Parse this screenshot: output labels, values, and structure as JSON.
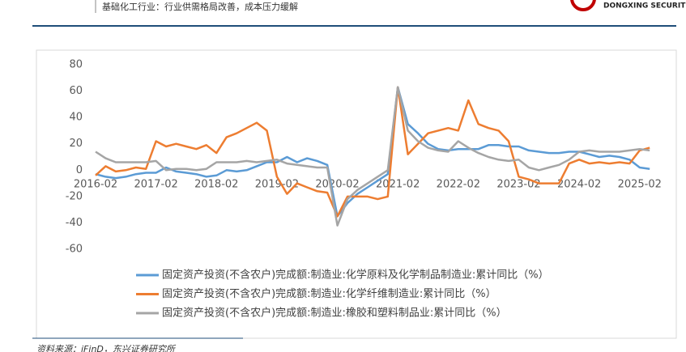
{
  "header": {
    "title": "基础化工行业：行业供需格局改善，成本压力缓解",
    "brand": "DONGXING SECURITIES"
  },
  "footer": {
    "source": "资料来源：iFinD，东兴证券研究所"
  },
  "chart_data": {
    "type": "line",
    "categories": [
      "2016-02",
      null,
      null,
      null,
      null,
      null,
      "2017-02",
      null,
      null,
      null,
      null,
      null,
      "2018-02",
      null,
      null,
      null,
      null,
      null,
      "2019-02",
      null,
      null,
      null,
      null,
      null,
      "2020-02",
      null,
      null,
      null,
      null,
      null,
      "2021-02",
      null,
      null,
      null,
      null,
      null,
      "2022-02",
      null,
      null,
      null,
      null,
      null,
      "2023-02",
      null,
      null,
      null,
      null,
      null,
      "2024-02",
      null,
      null,
      null,
      null,
      null,
      "2025-02",
      null
    ],
    "series": [
      {
        "name": "固定资产投资(不含农户)完成额:制造业:化学原料及化学制品制造业:累计同比（%）",
        "color": "#5b9bd5",
        "values": [
          -3,
          -5,
          -6,
          -5,
          -3,
          -2,
          -2,
          2,
          -1,
          -2,
          -3,
          -5,
          -4,
          0,
          -1,
          0,
          3,
          6,
          6,
          10,
          6,
          9,
          7,
          4,
          -35,
          -25,
          -18,
          -13,
          -8,
          -3,
          63,
          35,
          28,
          20,
          16,
          15,
          16,
          16,
          16,
          19,
          19,
          18,
          18,
          15,
          14,
          13,
          13,
          14,
          14,
          12,
          10,
          11,
          10,
          8,
          2,
          1
        ]
      },
      {
        "name": "固定资产投资(不含农户)完成额:制造业:化学纤维制造业:累计同比（%）",
        "color": "#ed7d31",
        "values": [
          -4,
          3,
          -1,
          0,
          2,
          1,
          22,
          18,
          20,
          18,
          16,
          19,
          13,
          25,
          28,
          32,
          36,
          30,
          -5,
          -18,
          -10,
          -13,
          -16,
          -17,
          -35,
          -20,
          -20,
          -20,
          -22,
          -20,
          63,
          12,
          20,
          28,
          30,
          32,
          30,
          53,
          35,
          32,
          30,
          22,
          -5,
          -7,
          -10,
          -10,
          -10,
          5,
          8,
          5,
          6,
          5,
          6,
          5,
          15,
          17
        ]
      },
      {
        "name": "固定资产投资(不含农户)完成额:制造业:橡胶和塑料制品业:累计同比（%）",
        "color": "#a5a5a5",
        "values": [
          14,
          9,
          6,
          6,
          6,
          6,
          7,
          0,
          1,
          1,
          0,
          1,
          6,
          6,
          6,
          7,
          6,
          7,
          8,
          5,
          4,
          3,
          2,
          2,
          -42,
          -22,
          -15,
          -10,
          -5,
          0,
          63,
          30,
          22,
          17,
          15,
          14,
          22,
          17,
          13,
          10,
          8,
          7,
          8,
          2,
          0,
          2,
          4,
          8,
          14,
          15,
          14,
          14,
          14,
          15,
          16,
          15
        ]
      }
    ],
    "ylim": [
      -60,
      80
    ],
    "yticks": [
      -60,
      -40,
      -20,
      0,
      20,
      40,
      60,
      80
    ],
    "grid": false
  }
}
